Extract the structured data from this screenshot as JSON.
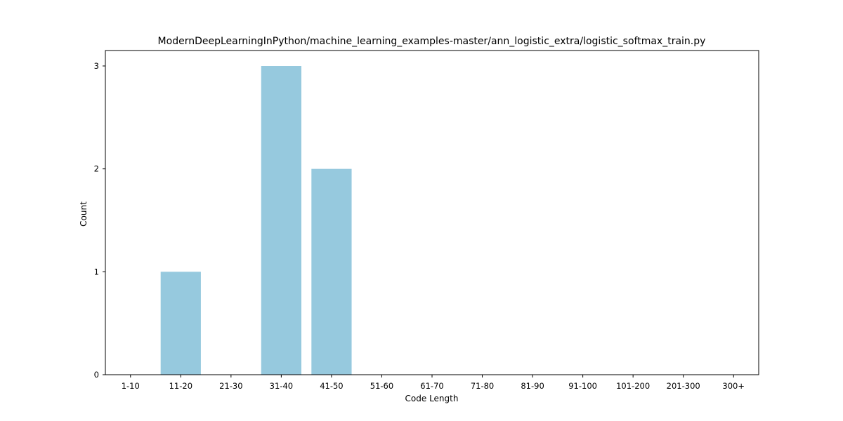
{
  "chart_data": {
    "type": "bar",
    "title": "ModernDeepLearningInPython/machine_learning_examples-master/ann_logistic_extra/logistic_softmax_train.py",
    "xlabel": "Code Length",
    "ylabel": "Count",
    "categories": [
      "1-10",
      "11-20",
      "21-30",
      "31-40",
      "41-50",
      "51-60",
      "61-70",
      "71-80",
      "81-90",
      "91-100",
      "101-200",
      "201-300",
      "300+"
    ],
    "values": [
      0,
      1,
      0,
      3,
      2,
      0,
      0,
      0,
      0,
      0,
      0,
      0,
      0
    ],
    "ylim": [
      0,
      3.15
    ],
    "yticks": [
      "0",
      "1",
      "2",
      "3"
    ],
    "bar_color": "#96c9de",
    "grid": false,
    "legend": "none"
  }
}
